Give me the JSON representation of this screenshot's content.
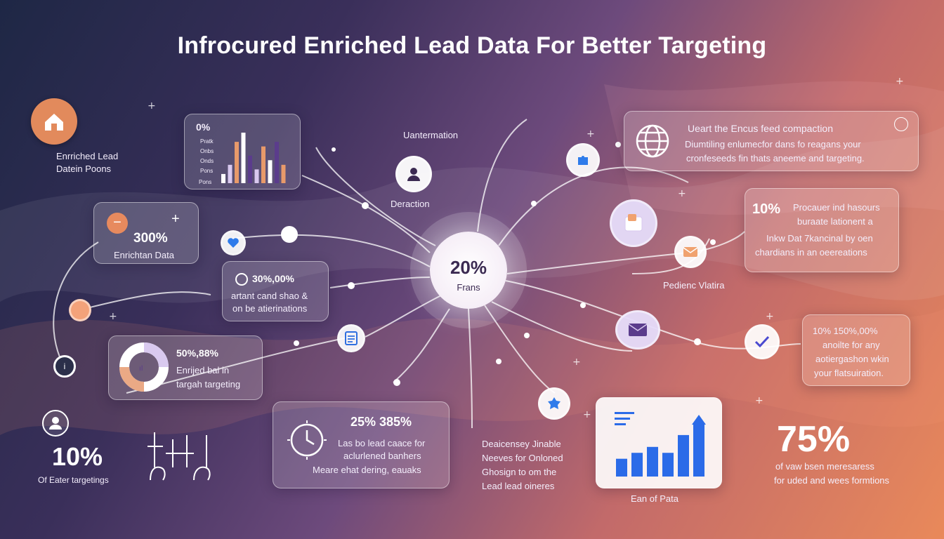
{
  "title": "Infrocured Enriched Lead Data For Better Targeting",
  "colors": {
    "bg_dark": "#1e2745",
    "bg_mid": "#6d4a7c",
    "bg_orange": "#e9895a",
    "accent_orange": "#e0805a",
    "accent_blue": "#2b6be8",
    "accent_purple": "#5b3c8c"
  },
  "top_left_badge": {
    "icon": "house-icon",
    "line1": "Enrriched Lead",
    "line2": "Datein Poons"
  },
  "bar_card": {
    "pct": "0%",
    "legend": [
      "Pratk",
      "Onbs",
      "Onds",
      "Pons"
    ],
    "caption": "Pons"
  },
  "enrich_card": {
    "pct": "300%",
    "label": "Enrichtan Data"
  },
  "analytics_card": {
    "pct": "30%,00%",
    "line1": "artant cand shao &",
    "line2": "on be atierinations"
  },
  "donut_card": {
    "pct": "50%,88%",
    "line1": "Enrijed bal in",
    "line2": "targah targeting"
  },
  "bottom_left": {
    "pct": "10%",
    "label": "Of Eater targetings"
  },
  "clock_card": {
    "pct": "25% 385%",
    "line1": "Las bo lead caace for",
    "line2": "aclurlened banhers",
    "line3": "Meare ehat dering, eauaks"
  },
  "hub": {
    "pct": "20%",
    "label": "Frans"
  },
  "hub_labels": {
    "top": "Uantermation",
    "mid": "Deraction"
  },
  "middle_text": {
    "line1": "Deaicensey Jinable",
    "line2": "Neeves for Onloned",
    "line3": "Ghosign to om the",
    "line4": "Lead lead oineres"
  },
  "globe_card": {
    "line1": "Ueart the Encus feed compaction",
    "line2": "Diumtiling enlumecfor dans fo reagans your",
    "line3": "cronfeseeds fin thats aneeme and targeting."
  },
  "procuer_card": {
    "pct": "10%",
    "line1": "Procauer ind hasours",
    "line2": "buraate lationent a",
    "line3": "Inkw Dat 7kancinal by oen",
    "line4": "chardians in an oeereations"
  },
  "pedienc_label": "Pedienc Vlatira",
  "check_card": {
    "line1": "10% 150%,00%",
    "line2": "anoilte for any",
    "line3": "aotiergashon wkin",
    "line4": "your flatsuiration."
  },
  "bar_chart_card": {
    "caption": "Ean of Pata"
  },
  "bottom_right": {
    "pct": "75%",
    "line1": "of vaw bsen meresaress",
    "line2": "for uded and wees formtions"
  },
  "chart_data": [
    {
      "type": "bar",
      "values": [
        2,
        4,
        9,
        11,
        6,
        3,
        8,
        5,
        9,
        4
      ],
      "legend": [
        "Pratk",
        "Onbs",
        "Onds",
        "Pons"
      ]
    },
    {
      "type": "bar",
      "values": [
        3,
        4,
        5,
        4,
        7,
        9
      ],
      "xlabel": "Ean of Pata"
    }
  ]
}
